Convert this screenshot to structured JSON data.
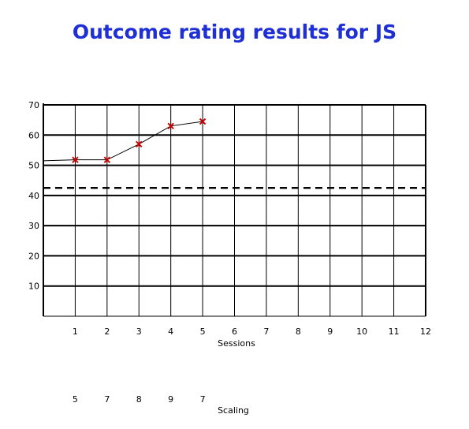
{
  "chart_data": {
    "type": "line",
    "title": "Outcome rating results for JS",
    "xlabel": "Sessions",
    "ylabel": "",
    "categories": [
      1,
      2,
      3,
      4,
      5,
      6,
      7,
      8,
      9,
      10,
      11,
      12
    ],
    "ylim": [
      0,
      70
    ],
    "yticks": [
      10,
      20,
      30,
      40,
      50,
      60,
      70
    ],
    "grid": true,
    "threshold_line": {
      "value": 42.5,
      "style": "dashed"
    },
    "start_value": 51.5,
    "series": [
      {
        "x": [
          1,
          2,
          3,
          4,
          5
        ],
        "values": [
          51.8,
          51.8,
          57.0,
          63.0,
          64.5
        ],
        "marker": "x",
        "marker_color": "#cc0000",
        "line_color": "#000000"
      }
    ],
    "scaling": {
      "label": "Scaling",
      "x": [
        1,
        2,
        3,
        4,
        5
      ],
      "values": [
        "5",
        "7",
        "8",
        "9",
        "7"
      ]
    }
  }
}
